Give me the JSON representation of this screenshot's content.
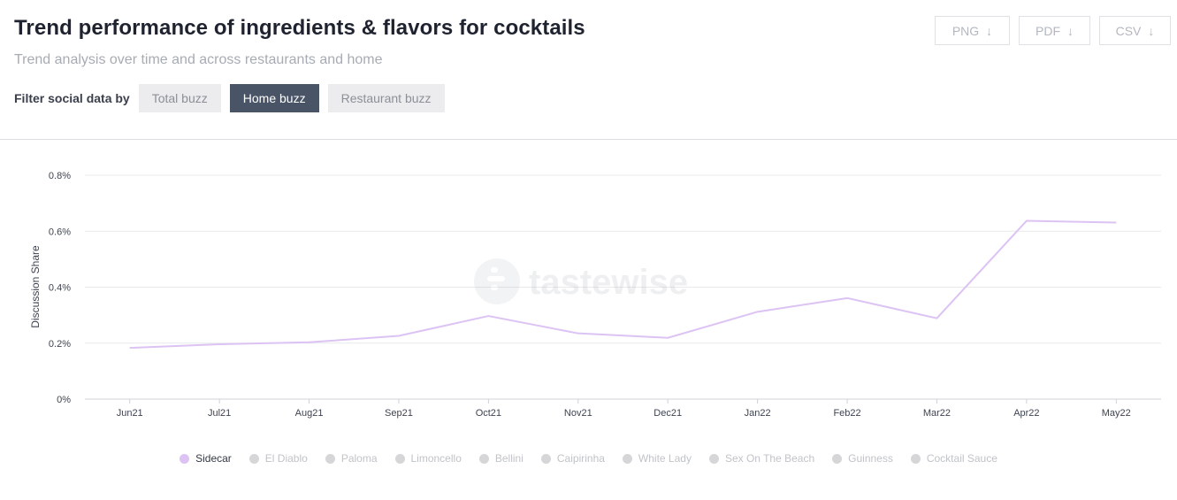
{
  "header": {
    "title": "Trend performance of ingredients & flavors for cocktails",
    "subtitle": "Trend analysis over time and across restaurants and home"
  },
  "filters": {
    "label": "Filter social data by",
    "buttons": [
      {
        "label": "Total buzz",
        "active": false
      },
      {
        "label": "Home buzz",
        "active": true
      },
      {
        "label": "Restaurant buzz",
        "active": false
      }
    ]
  },
  "exports": [
    {
      "label": "PNG",
      "icon": "download-arrow-icon"
    },
    {
      "label": "PDF",
      "icon": "download-arrow-icon"
    },
    {
      "label": "CSV",
      "icon": "download-arrow-icon"
    }
  ],
  "watermark": "tastewise",
  "colors": {
    "line": "#dcc3f4",
    "legend_active": "#dcc3f4",
    "legend_inactive": "#d6d6d8",
    "active_filter": "#4a5467"
  },
  "chart_data": {
    "type": "line",
    "ylabel": "Discussion Share",
    "ylim": [
      0,
      0.8
    ],
    "yticks": [
      {
        "value": 0,
        "label": "0%"
      },
      {
        "value": 0.2,
        "label": "0.2%"
      },
      {
        "value": 0.4,
        "label": "0.4%"
      },
      {
        "value": 0.6,
        "label": "0.6%"
      },
      {
        "value": 0.8,
        "label": "0.8%"
      }
    ],
    "grid": true,
    "legend_position": "bottom",
    "categories": [
      "Jun21",
      "Jul21",
      "Aug21",
      "Sep21",
      "Oct21",
      "Nov21",
      "Dec21",
      "Jan22",
      "Feb22",
      "Mar22",
      "Apr22",
      "May22"
    ],
    "series": [
      {
        "name": "Sidecar",
        "values": [
          0.183,
          0.196,
          0.203,
          0.226,
          0.297,
          0.235,
          0.219,
          0.312,
          0.361,
          0.289,
          0.637,
          0.631
        ]
      }
    ],
    "legend": [
      {
        "name": "Sidecar",
        "active": true
      },
      {
        "name": "El Diablo",
        "active": false
      },
      {
        "name": "Paloma",
        "active": false
      },
      {
        "name": "Limoncello",
        "active": false
      },
      {
        "name": "Bellini",
        "active": false
      },
      {
        "name": "Caipirinha",
        "active": false
      },
      {
        "name": "White Lady",
        "active": false
      },
      {
        "name": "Sex On The Beach",
        "active": false
      },
      {
        "name": "Guinness",
        "active": false
      },
      {
        "name": "Cocktail Sauce",
        "active": false
      }
    ]
  }
}
